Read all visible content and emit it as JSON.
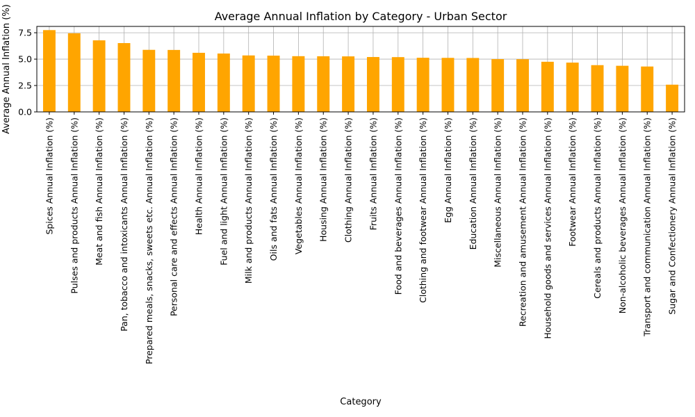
{
  "chart_data": {
    "type": "bar",
    "title": "Average Annual Inflation by Category - Urban Sector",
    "xlabel": "Category",
    "ylabel": "Average Annual Inflation (%)",
    "ylim": [
      0,
      8.1
    ],
    "yticks": [
      0.0,
      2.5,
      5.0,
      7.5
    ],
    "ytick_labels": [
      "0.0",
      "2.5",
      "5.0",
      "7.5"
    ],
    "grid": true,
    "bar_color": "#ffa500",
    "categories": [
      "Spices Annual Inflation (%)",
      "Pulses and products Annual Inflation (%)",
      "Meat and fish Annual Inflation (%)",
      "Pan, tobacco and intoxicants Annual Inflation (%)",
      "Prepared meals, snacks, sweets etc. Annual Inflation (%)",
      "Personal care and effects Annual Inflation (%)",
      "Health Annual Inflation (%)",
      "Fuel and light Annual Inflation (%)",
      "Milk and products Annual Inflation (%)",
      "Oils and fats Annual Inflation (%)",
      "Vegetables Annual Inflation (%)",
      "Housing Annual Inflation (%)",
      "Clothing Annual Inflation (%)",
      "Fruits Annual Inflation (%)",
      "Food and beverages Annual Inflation (%)",
      "Clothing and footwear Annual Inflation (%)",
      "Egg Annual Inflation (%)",
      "Education Annual Inflation (%)",
      "Miscellaneous Annual Inflation (%)",
      "Recreation and amusement Annual Inflation (%)",
      "Household goods and services Annual Inflation (%)",
      "Footwear Annual Inflation (%)",
      "Cereals and products Annual Inflation (%)",
      "Non-alcoholic beverages Annual Inflation (%)",
      "Transport and communication Annual Inflation (%)",
      "Sugar and Confectionery Annual Inflation (%)"
    ],
    "values": [
      7.75,
      7.45,
      6.78,
      6.52,
      5.88,
      5.87,
      5.6,
      5.53,
      5.35,
      5.33,
      5.28,
      5.27,
      5.26,
      5.2,
      5.19,
      5.13,
      5.12,
      5.11,
      5.0,
      4.99,
      4.75,
      4.67,
      4.43,
      4.37,
      4.3,
      2.58
    ]
  }
}
